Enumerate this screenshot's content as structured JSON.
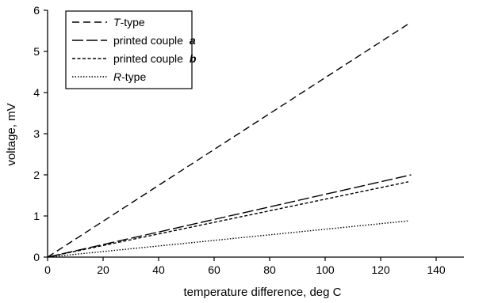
{
  "chart_data": {
    "type": "line",
    "xlabel": "temperature difference, deg C",
    "ylabel": "voltage, mV",
    "xlim": [
      0,
      150
    ],
    "ylim": [
      0,
      6
    ],
    "xticks": [
      0,
      20,
      40,
      60,
      80,
      100,
      120,
      140
    ],
    "yticks": [
      0,
      1,
      2,
      3,
      4,
      5,
      6
    ],
    "grid": false,
    "legend_position": "top-left",
    "series": [
      {
        "name": "T-type",
        "name_italic": "T",
        "name_rest": "-type",
        "dash": "dashed",
        "x": [
          0,
          130
        ],
        "y": [
          0,
          5.67
        ]
      },
      {
        "name": "printed couple a",
        "name_rest": "printed couple ",
        "name_bold_italic": "a",
        "dash": "long-dashed",
        "x": [
          0,
          131
        ],
        "y": [
          0,
          2.0
        ]
      },
      {
        "name": "printed couple b",
        "name_rest": "printed couple ",
        "name_bold_italic": "b",
        "dash": "short-dashed",
        "x": [
          0,
          130
        ],
        "y": [
          0,
          1.83
        ]
      },
      {
        "name": "R-type",
        "name_italic": "R",
        "name_rest": "-type",
        "dash": "dotted",
        "x": [
          0,
          130
        ],
        "y": [
          0,
          0.88
        ]
      }
    ]
  }
}
